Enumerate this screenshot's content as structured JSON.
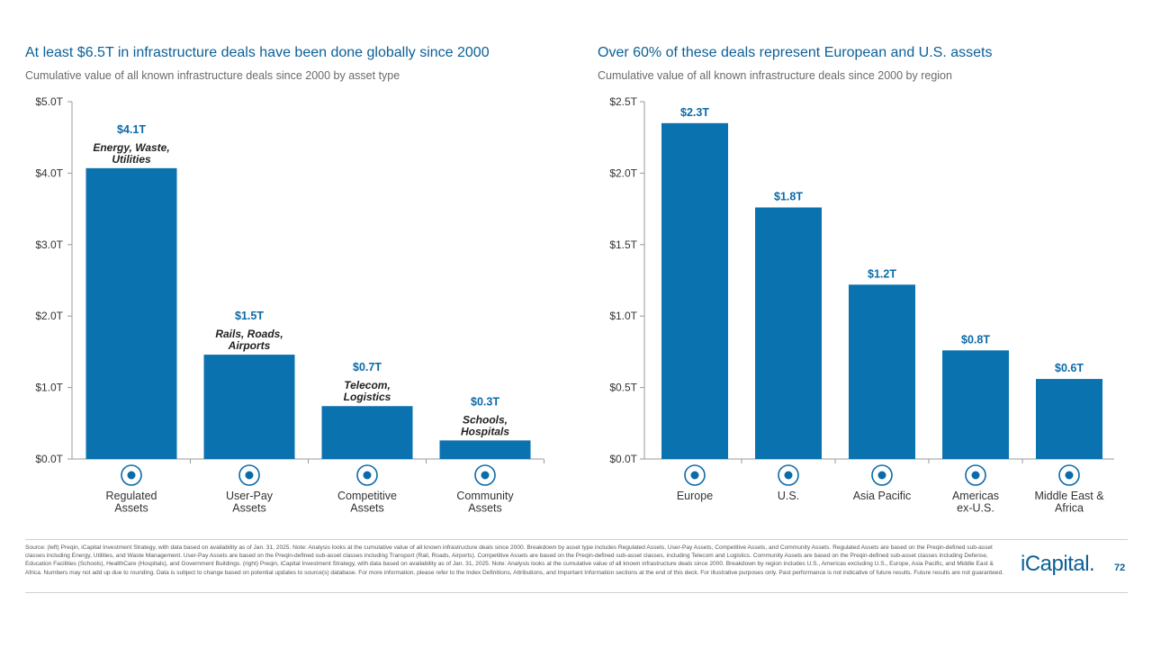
{
  "left": {
    "title": "At least $6.5T in infrastructure deals have been done globally since 2000",
    "subtitle": "Cumulative value of all known infrastructure deals since 2000 by asset type"
  },
  "right": {
    "title": "Over 60% of these deals represent European and U.S. assets",
    "subtitle": "Cumulative value of all known infrastructure deals since 2000 by region"
  },
  "colors": {
    "bar": "#0b72b0",
    "value": "#0b6aa8",
    "title": "#0b5f98",
    "axis": "#999999"
  },
  "chart_data": [
    {
      "type": "bar",
      "title": "At least $6.5T in infrastructure deals have been done globally since 2000",
      "ylim": [
        0,
        5
      ],
      "yticks": [
        0,
        1,
        2,
        3,
        4,
        5
      ],
      "ytick_labels": [
        "$0.0T",
        "$1.0T",
        "$2.0T",
        "$3.0T",
        "$4.0T",
        "$5.0T"
      ],
      "categories": [
        "Regulated Assets",
        "User-Pay Assets",
        "Competitive Assets",
        "Community Assets"
      ],
      "category_lines": [
        [
          "Regulated",
          "Assets"
        ],
        [
          "User-Pay",
          "Assets"
        ],
        [
          "Competitive",
          "Assets"
        ],
        [
          "Community",
          "Assets"
        ]
      ],
      "values": [
        4.07,
        1.46,
        0.74,
        0.26
      ],
      "value_labels": [
        "$4.1T",
        "$1.5T",
        "$0.7T",
        "$0.3T"
      ],
      "descriptions": [
        [
          "Energy, Waste,",
          "Utilities"
        ],
        [
          "Rails, Roads,",
          "Airports"
        ],
        [
          "Telecom,",
          "Logistics"
        ],
        [
          "Schools,",
          "Hospitals"
        ]
      ],
      "icons": [
        "factory-icon",
        "airplane-icon",
        "tower-icon",
        "buildings-icon"
      ]
    },
    {
      "type": "bar",
      "title": "Over 60% of these deals represent European and U.S. assets",
      "ylim": [
        0,
        2.5
      ],
      "yticks": [
        0,
        0.5,
        1,
        1.5,
        2,
        2.5
      ],
      "ytick_labels": [
        "$0.0T",
        "$0.5T",
        "$1.0T",
        "$1.5T",
        "$2.0T",
        "$2.5T"
      ],
      "categories": [
        "Europe",
        "U.S.",
        "Asia Pacific",
        "Americas ex-U.S.",
        "Middle East & Africa"
      ],
      "category_lines": [
        [
          "Europe"
        ],
        [
          "U.S."
        ],
        [
          "Asia Pacific"
        ],
        [
          "Americas",
          "ex-U.S."
        ],
        [
          "Middle East &",
          "Africa"
        ]
      ],
      "values": [
        2.35,
        1.76,
        1.22,
        0.76,
        0.56
      ],
      "value_labels": [
        "$2.3T",
        "$1.8T",
        "$1.2T",
        "$0.8T",
        "$0.6T"
      ],
      "icons": [
        "europe-map-icon",
        "us-map-icon",
        "asia-map-icon",
        "americas-globe-icon",
        "africa-map-icon"
      ]
    }
  ],
  "footer": {
    "source": "Source: (left) Preqin, iCapital Investment Strategy, with data based on availability as of Jan. 31, 2025. Note: Analysis looks at the cumulative value of all known infrastructure deals since 2000. Breakdown by asset type includes Regulated Assets, User-Pay Assets, Competitive Assets, and Community Assets. Regulated Assets are based on the Preqin-defined sub-asset classes including Energy, Utilities, and Waste Management. User-Pay Assets are based on the Preqin-defined sub-asset classes including Transport (Rail, Roads, Airports). Competitive Assets are based on the Preqin-defined sub-asset classes, including Telecom and Logistics. Community Assets are based on the Preqin-defined sub-asset classes including Defense, Education Facilities (Schools), HealthCare (Hospitals), and Government Buildings. (right) Preqin, iCapital Investment Strategy, with data based on availability as of Jan. 31, 2025. Note: Analysis looks at the cumulative value of all known infrastructure deals since 2000. Breakdown by region includes U.S., Americas excluding U.S., Europe, Asia Pacific, and Middle East & Africa. Numbers may not add up due to rounding. Data is subject to change based on potential updates to source(s) database. For more information, please refer to the Index Definitions, Attributions, and Important Information sections at the end of this deck. For illustrative purposes only. Past performance is not indicative of future results. Future results are not guaranteed.",
    "logo": "iCapital.",
    "page_number": "72"
  }
}
